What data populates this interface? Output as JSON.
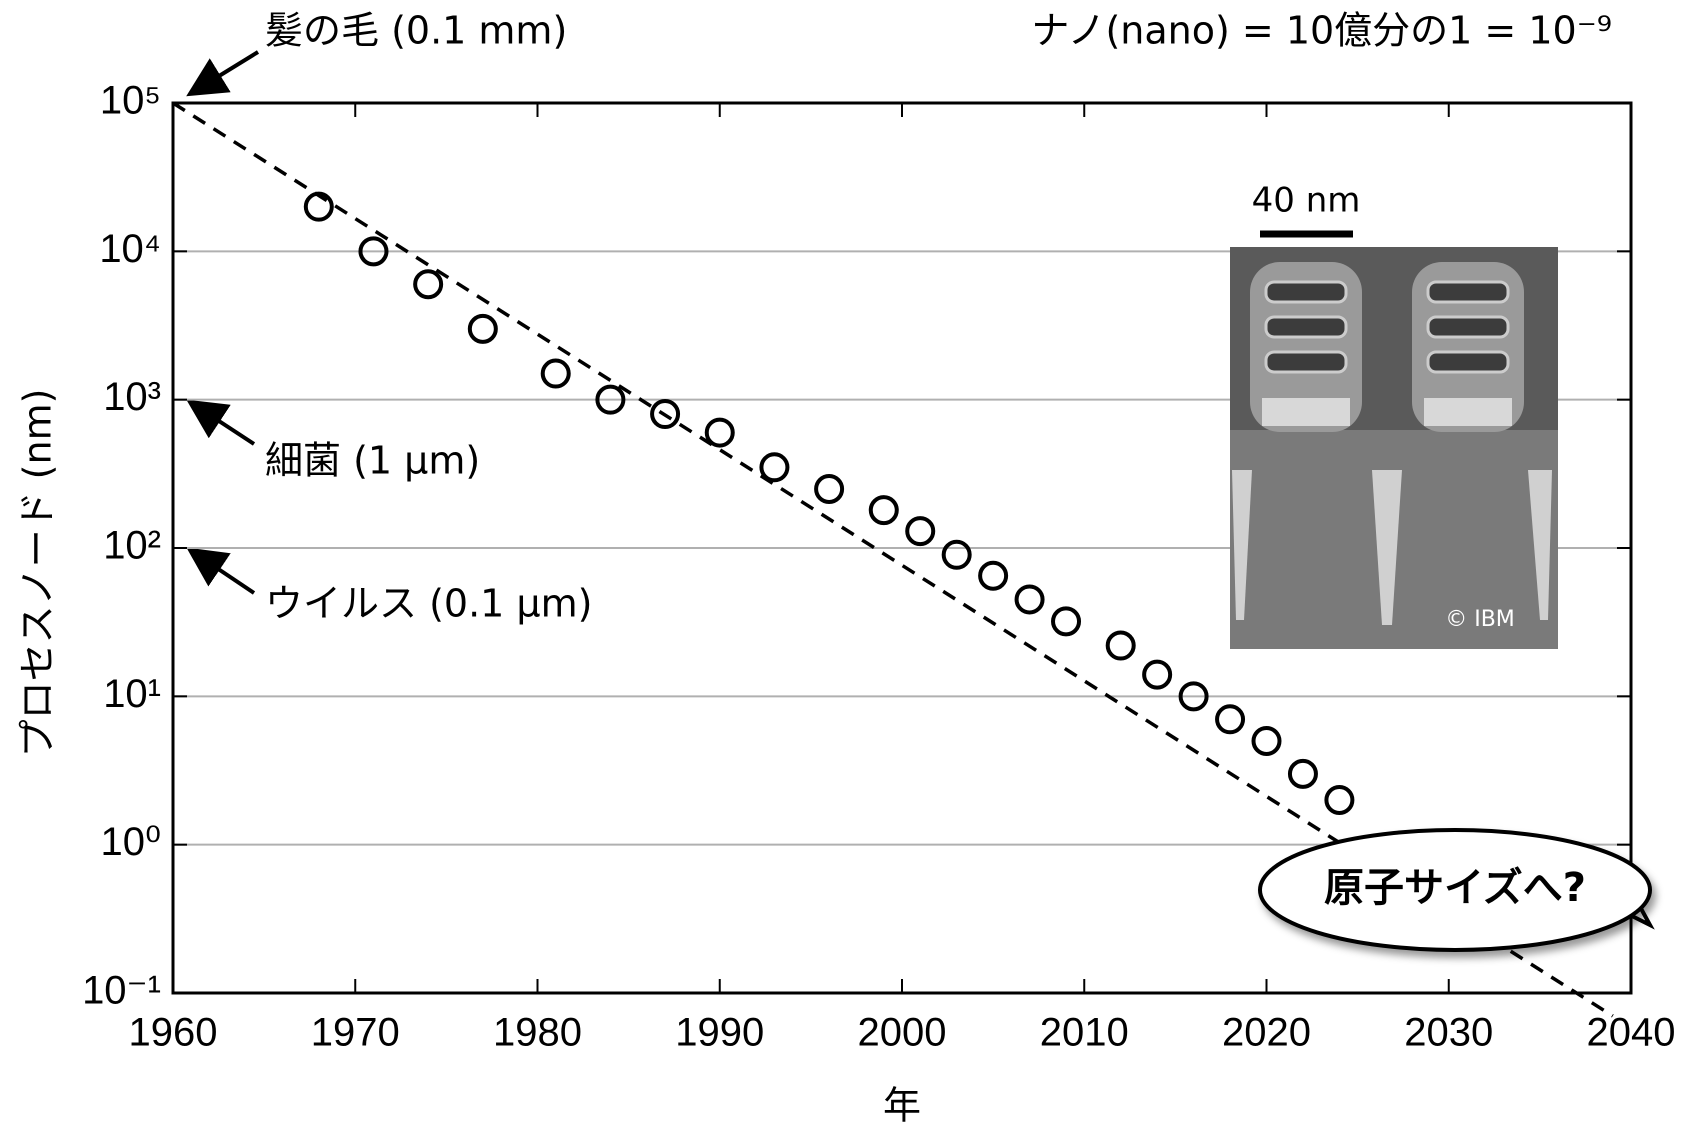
{
  "chart_data": {
    "type": "scatter",
    "xlabel": "年",
    "ylabel": "プロセスノード (nm)",
    "log_y": true,
    "grid": true,
    "x": [
      1968,
      1971,
      1974,
      1977,
      1981,
      1984,
      1987,
      1990,
      1993,
      1996,
      1999,
      2001,
      2003,
      2005,
      2007,
      2009,
      2012,
      2014,
      2016,
      2018,
      2020,
      2022,
      2024
    ],
    "values": [
      20000,
      10000,
      6000,
      3000,
      1500,
      1000,
      800,
      600,
      350,
      250,
      180,
      130,
      90,
      65,
      45,
      32,
      22,
      14,
      10,
      7,
      5,
      3,
      2
    ],
    "color": "#000000",
    "trend": {
      "x": [
        1960,
        2039
      ],
      "y": [
        100000,
        0.07
      ]
    },
    "xlim": [
      1960,
      2040
    ],
    "xticks": [
      1960,
      1970,
      1980,
      1990,
      2000,
      2010,
      2020,
      2030,
      2040
    ],
    "ylim": [
      0.1,
      100000
    ],
    "yticks": [
      {
        "value": 0.1,
        "label": "10⁻¹"
      },
      {
        "value": 1,
        "label": "10⁰"
      },
      {
        "value": 10,
        "label": "10¹"
      },
      {
        "value": 100,
        "label": "10²"
      },
      {
        "value": 1000,
        "label": "10³"
      },
      {
        "value": 10000,
        "label": "10⁴"
      },
      {
        "value": 100000,
        "label": "10⁵"
      }
    ],
    "annotations": {
      "hair": "髪の毛 (0.1 mm)",
      "bacteria": "細菌 (1 µm)",
      "virus": "ウイルス (0.1 µm)",
      "nano": "ナノ(nano) = 10億分の1 = 10⁻⁹",
      "callout": "原子サイズへ?"
    },
    "inset": {
      "scale": "40 nm",
      "credit": "© IBM"
    }
  }
}
